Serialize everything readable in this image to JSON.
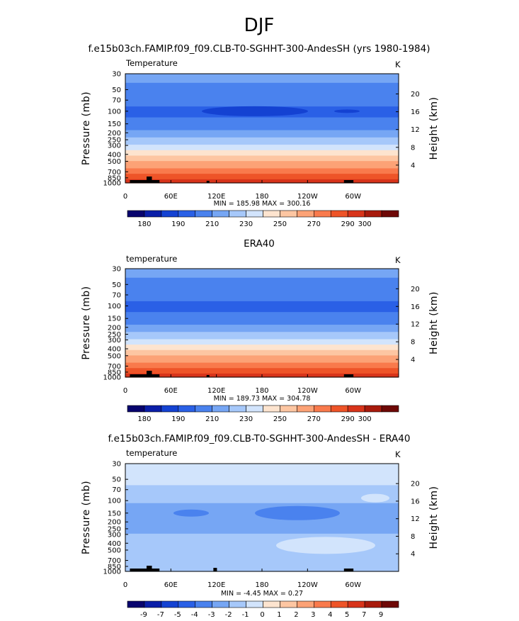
{
  "figure": {
    "season_label": "DJF",
    "pressure_axis_label": "Pressure (mb)",
    "height_axis_label": "Height (km)",
    "units": "K",
    "pressure_ticks": [
      "30",
      "50",
      "70",
      "100",
      "150",
      "200",
      "250",
      "300",
      "400",
      "500",
      "700",
      "850",
      "1000"
    ],
    "height_ticks": [
      "20",
      "16",
      "12",
      "8",
      "4"
    ],
    "longitude_ticks": [
      "0",
      "60E",
      "120E",
      "180",
      "120W",
      "60W"
    ]
  },
  "chart_data": [
    {
      "type": "heatmap",
      "title": "f.e15b03ch.FAMIP.f09_f09.CLB-T0-SGHHT-300-AndesSH (yrs 1980-1984)",
      "panel_label": "Temperature",
      "min_max_text": "MIN =  185.98   MAX =  300.16",
      "min": 185.98,
      "max": 300.16,
      "x": "longitude",
      "y": "pressure (mb)",
      "ylim": [
        1000,
        30
      ],
      "colorbar_labels": [
        "180",
        "190",
        "210",
        "230",
        "250",
        "270",
        "290",
        "300"
      ],
      "colorbar_levels": [
        175,
        180,
        185,
        190,
        200,
        210,
        220,
        230,
        240,
        250,
        260,
        270,
        280,
        290,
        295,
        300
      ]
    },
    {
      "type": "heatmap",
      "title": "ERA40",
      "panel_label": "temperature",
      "min_max_text": "MIN =  189.73   MAX =  304.78",
      "min": 189.73,
      "max": 304.78,
      "x": "longitude",
      "y": "pressure (mb)",
      "ylim": [
        1000,
        30
      ],
      "colorbar_labels": [
        "180",
        "190",
        "210",
        "230",
        "250",
        "270",
        "290",
        "300"
      ],
      "colorbar_levels": [
        175,
        180,
        185,
        190,
        200,
        210,
        220,
        230,
        240,
        250,
        260,
        270,
        280,
        290,
        295,
        300
      ]
    },
    {
      "type": "heatmap",
      "title": "f.e15b03ch.FAMIP.f09_f09.CLB-T0-SGHHT-300-AndesSH - ERA40",
      "panel_label": "temperature",
      "min_max_text": "MIN =   -4.45   MAX =    0.27",
      "min": -4.45,
      "max": 0.27,
      "x": "longitude",
      "y": "pressure (mb)",
      "ylim": [
        1000,
        30
      ],
      "colorbar_labels": [
        "-9",
        "-7",
        "-5",
        "-4",
        "-3",
        "-2",
        "-1",
        "0",
        "1",
        "2",
        "3",
        "4",
        "5",
        "7",
        "9"
      ],
      "colorbar_levels": [
        -9,
        -7,
        -5,
        -4,
        -3,
        -2,
        -1,
        0,
        1,
        2,
        3,
        4,
        5,
        7,
        9
      ]
    }
  ],
  "colors": {
    "palette": [
      "#08046e",
      "#0a1ea8",
      "#1442d2",
      "#2a60e6",
      "#4a82ee",
      "#76a6f4",
      "#a6c8fa",
      "#d2e4fc",
      "#fde4cf",
      "#fdc6a2",
      "#fca276",
      "#f97a4c",
      "#ee5428",
      "#d8341a",
      "#a81a0c",
      "#6e0806"
    ],
    "diff_palette": [
      "#08046e",
      "#0a1ea8",
      "#1442d2",
      "#2a60e6",
      "#4a82ee",
      "#76a6f4",
      "#a6c8fa",
      "#d2e4fc",
      "#fde4cf",
      "#fdc6a2",
      "#fca276",
      "#f97a4c",
      "#ee5428",
      "#d8341a",
      "#a81a0c",
      "#6e0806"
    ],
    "topography": "#000000"
  }
}
